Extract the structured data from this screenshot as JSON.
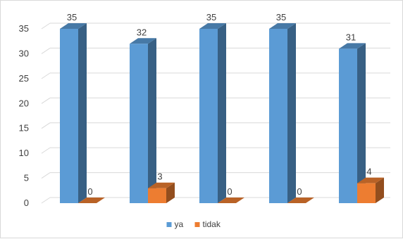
{
  "chart_data": {
    "type": "bar",
    "categories": [
      "",
      "",
      "",
      "",
      ""
    ],
    "series": [
      {
        "name": "ya",
        "values": [
          35,
          32,
          35,
          35,
          31
        ],
        "color": "#5b9bd5"
      },
      {
        "name": "tidak",
        "values": [
          0,
          3,
          0,
          0,
          4
        ],
        "color": "#ed7d31"
      }
    ],
    "ylim": [
      0,
      35
    ],
    "yticks": [
      0,
      5,
      10,
      15,
      20,
      25,
      30,
      35
    ],
    "grid": true,
    "legend": "bottom",
    "style": "3d-column",
    "title": "",
    "xlabel": "",
    "ylabel": ""
  }
}
